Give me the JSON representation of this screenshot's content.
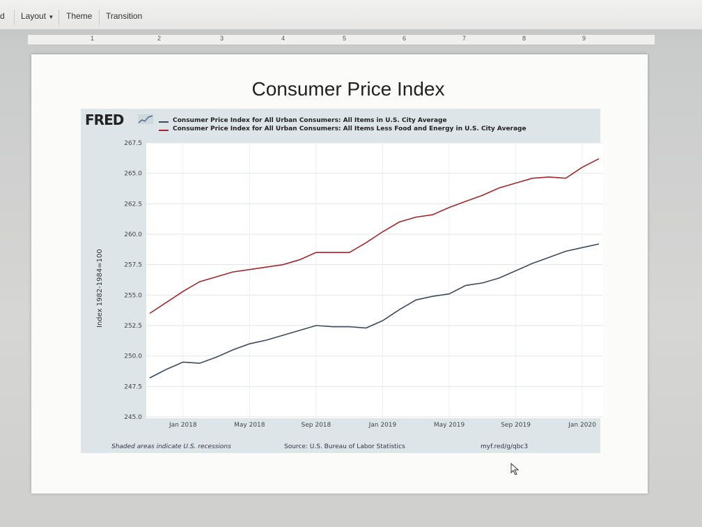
{
  "menubar": {
    "partial_item": "d",
    "layout_label": "Layout",
    "theme_label": "Theme",
    "transition_label": "Transition"
  },
  "ruler": {
    "marks": [
      "1",
      "2",
      "3",
      "4",
      "5",
      "6",
      "7",
      "8",
      "9"
    ]
  },
  "slide": {
    "title": "Consumer Price Index"
  },
  "fred": {
    "logo_text": "FRED"
  },
  "colors": {
    "series1": "#3b4a5c",
    "series2": "#a3262b",
    "plot_bg": "#ffffff",
    "frame_bg": "#dde5e9"
  },
  "chart_data": {
    "type": "line",
    "x": [
      "Nov 2017",
      "Dec 2017",
      "Jan 2018",
      "Feb 2018",
      "Mar 2018",
      "Apr 2018",
      "May 2018",
      "Jun 2018",
      "Jul 2018",
      "Aug 2018",
      "Sep 2018",
      "Oct 2018",
      "Nov 2018",
      "Dec 2018",
      "Jan 2019",
      "Feb 2019",
      "Mar 2019",
      "Apr 2019",
      "May 2019",
      "Jun 2019",
      "Jul 2019",
      "Aug 2019",
      "Sep 2019",
      "Oct 2019",
      "Nov 2019",
      "Dec 2019",
      "Jan 2020",
      "Feb 2020"
    ],
    "series": [
      {
        "name": "Consumer Price Index for All Urban Consumers: All Items in U.S. City Average",
        "values": [
          248.2,
          248.9,
          249.5,
          249.4,
          249.9,
          250.5,
          251.0,
          251.3,
          251.7,
          252.1,
          252.5,
          252.4,
          252.4,
          252.3,
          252.9,
          253.8,
          254.6,
          254.9,
          255.1,
          255.8,
          256.0,
          256.4,
          257.0,
          257.6,
          258.1,
          258.6,
          258.9,
          259.2
        ],
        "color": "#3b4a5c"
      },
      {
        "name": "Consumer Price Index for All Urban Consumers: All Items Less Food and Energy in U.S. City Average",
        "values": [
          253.5,
          254.4,
          255.3,
          256.1,
          256.5,
          256.9,
          257.1,
          257.3,
          257.5,
          257.9,
          258.5,
          258.5,
          258.5,
          259.3,
          260.2,
          261.0,
          261.4,
          261.6,
          262.2,
          262.7,
          263.2,
          263.8,
          264.2,
          264.6,
          264.7,
          264.6,
          265.5,
          266.2
        ],
        "color": "#a3262b"
      }
    ],
    "ylim": [
      245.0,
      267.5
    ],
    "yticks": [
      "245.0",
      "247.5",
      "250.0",
      "252.5",
      "255.0",
      "257.5",
      "260.0",
      "262.5",
      "265.0",
      "267.5"
    ],
    "xtick_labels": [
      "Jan 2018",
      "May 2018",
      "Sep 2018",
      "Jan 2019",
      "May 2019",
      "Sep 2019",
      "Jan 2020"
    ],
    "xtick_positions": [
      2,
      6,
      10,
      14,
      18,
      22,
      26
    ],
    "xlabel": "",
    "ylabel": "Index 1982-1984=100",
    "grid": true,
    "legend_position": "top",
    "footer_left": "Shaded areas indicate U.S. recessions",
    "footer_center": "Source: U.S. Bureau of Labor Statistics",
    "footer_right": "myf.red/g/qbc3"
  }
}
